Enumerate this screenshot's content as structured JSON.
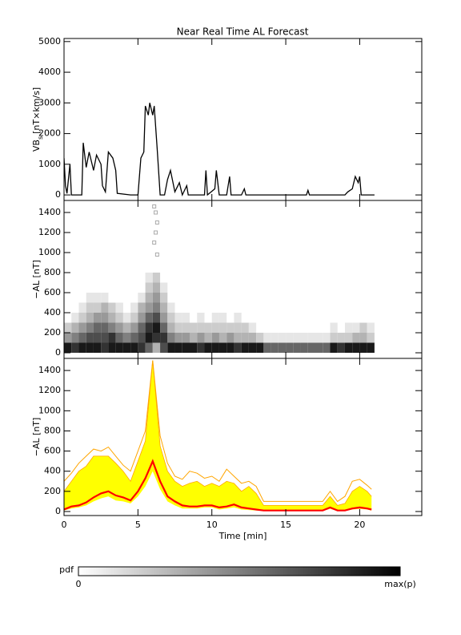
{
  "chart_data": [
    {
      "type": "line",
      "title": "Near Real Time AL Forecast",
      "ylabel": "VB",
      "ylabel_sub": "s",
      "ylabel_unit": "[nT×km/s]",
      "color": "#000000",
      "xlim": [
        0,
        24.2
      ],
      "xticks": [
        0,
        5,
        10,
        15,
        20
      ],
      "ylim": [
        -180,
        5100
      ],
      "yticks": [
        0,
        1000,
        2000,
        3000,
        4000,
        5000
      ],
      "x": [
        0,
        0.1,
        0.2,
        0.4,
        0.5,
        1.2,
        1.3,
        1.5,
        1.7,
        2,
        2.2,
        2.5,
        2.6,
        2.8,
        3.0,
        3.3,
        3.5,
        3.6,
        4.5,
        5,
        5.2,
        5.4,
        5.5,
        5.7,
        5.8,
        6.0,
        6.1,
        6.3,
        6.5,
        6.8,
        7.0,
        7.2,
        7.5,
        7.8,
        8,
        8.3,
        8.4,
        9,
        9.5,
        9.6,
        9.7,
        10.2,
        10.3,
        10.5,
        11,
        11.2,
        11.3,
        12,
        12.2,
        12.3,
        16.4,
        16.5,
        16.6,
        19,
        19.2,
        19.5,
        19.7,
        19.9,
        20,
        20.1,
        21
      ],
      "values": [
        1200,
        300,
        50,
        1000,
        0,
        0,
        1700,
        900,
        1400,
        800,
        1300,
        1000,
        300,
        100,
        1400,
        1200,
        800,
        50,
        0,
        0,
        1200,
        1400,
        2900,
        2600,
        3000,
        2600,
        2900,
        1500,
        0,
        0,
        500,
        800,
        100,
        400,
        0,
        300,
        0,
        0,
        0,
        800,
        0,
        200,
        800,
        0,
        0,
        600,
        0,
        0,
        200,
        0,
        0,
        150,
        0,
        0,
        100,
        200,
        600,
        400,
        600,
        0,
        0
      ]
    },
    {
      "type": "heatmap",
      "ylabel": "−AL [nT]",
      "xlim": [
        0,
        24.2
      ],
      "xticks": [
        0,
        5,
        10,
        15,
        20
      ],
      "ylim": [
        -56,
        1520
      ],
      "yticks": [
        0,
        200,
        400,
        600,
        800,
        1000,
        1200,
        1400
      ],
      "x_bins": [
        0,
        0.5,
        1,
        1.5,
        2,
        2.5,
        3,
        3.5,
        4,
        4.5,
        5,
        5.5,
        6,
        6.5,
        7,
        7.5,
        8,
        8.5,
        9,
        9.5,
        10,
        10.5,
        11,
        11.5,
        12,
        12.5,
        13,
        13.5,
        14,
        14.5,
        15,
        15.5,
        16,
        16.5,
        17,
        17.5,
        18,
        18.5,
        19,
        19.5,
        20,
        20.5,
        21
      ],
      "y_step": 100,
      "z": [
        [
          0.9,
          0.4,
          0.2
        ],
        [
          0.8,
          0.5,
          0.3,
          0.1
        ],
        [
          0.9,
          0.6,
          0.4,
          0.2,
          0.1
        ],
        [
          0.9,
          0.7,
          0.5,
          0.3,
          0.2,
          0.1
        ],
        [
          0.9,
          0.7,
          0.6,
          0.4,
          0.2,
          0.1
        ],
        [
          0.8,
          0.7,
          0.6,
          0.4,
          0.3,
          0.1
        ],
        [
          0.9,
          0.8,
          0.5,
          0.3,
          0.2
        ],
        [
          0.9,
          0.6,
          0.4,
          0.2,
          0.1
        ],
        [
          0.9,
          0.5,
          0.3,
          0.1
        ],
        [
          0.9,
          0.6,
          0.4,
          0.2,
          0.1
        ],
        [
          0.8,
          0.7,
          0.6,
          0.4,
          0.3,
          0.1
        ],
        [
          0.6,
          0.9,
          0.8,
          0.6,
          0.4,
          0.3,
          0.2,
          0.1
        ],
        [
          0.3,
          0.8,
          0.9,
          0.7,
          0.5,
          0.4,
          0.3,
          0.2
        ],
        [
          0.7,
          0.8,
          0.6,
          0.4,
          0.3,
          0.2,
          0.1
        ],
        [
          0.9,
          0.5,
          0.3,
          0.2,
          0.1
        ],
        [
          0.9,
          0.4,
          0.2,
          0.1
        ],
        [
          0.9,
          0.4,
          0.2,
          0.1
        ],
        [
          0.9,
          0.3,
          0.2
        ],
        [
          0.8,
          0.4,
          0.2,
          0.1
        ],
        [
          0.9,
          0.3,
          0.2
        ],
        [
          0.9,
          0.4,
          0.2,
          0.1
        ],
        [
          0.9,
          0.3,
          0.2,
          0.1
        ],
        [
          0.9,
          0.4,
          0.2
        ],
        [
          0.8,
          0.3,
          0.2,
          0.1
        ],
        [
          0.9,
          0.3,
          0.2
        ],
        [
          0.9,
          0.3,
          0.1
        ],
        [
          0.9,
          0.2
        ],
        [
          0.6,
          0.1
        ],
        [
          0.6,
          0.1
        ],
        [
          0.6,
          0.1
        ],
        [
          0.6,
          0.1
        ],
        [
          0.6,
          0.1
        ],
        [
          0.6,
          0.1
        ],
        [
          0.6,
          0.1
        ],
        [
          0.6,
          0.1
        ],
        [
          0.6,
          0.1
        ],
        [
          0.9,
          0.2,
          0.1
        ],
        [
          0.8,
          0.2
        ],
        [
          0.9,
          0.2,
          0.1
        ],
        [
          0.9,
          0.3,
          0.1
        ],
        [
          0.9,
          0.3,
          0.2
        ],
        [
          0.9,
          0.2,
          0.1
        ]
      ],
      "outliers": {
        "x": [
          6.1,
          6.2,
          6.3,
          6.2,
          6.1,
          6.3
        ],
        "y": [
          1460,
          1400,
          1300,
          1200,
          1100,
          980
        ]
      },
      "colorbar": {
        "label": "pdf",
        "min_label": "0",
        "max_label": "max(p)"
      }
    },
    {
      "type": "band",
      "ylabel": "−AL [nT]",
      "xlabel": "Time [min]",
      "xlim": [
        0,
        24.2
      ],
      "xticks": [
        0,
        5,
        10,
        15,
        20
      ],
      "ylim": [
        -40,
        1520
      ],
      "yticks": [
        0,
        200,
        400,
        600,
        800,
        1000,
        1200,
        1400
      ],
      "x": [
        0,
        0.5,
        1,
        1.5,
        2,
        2.5,
        3,
        3.5,
        4,
        4.5,
        5,
        5.5,
        6,
        6.5,
        7,
        7.5,
        8,
        8.5,
        9,
        9.5,
        10,
        10.5,
        11,
        11.5,
        12,
        12.5,
        13,
        13.5,
        14,
        14.5,
        15,
        15.5,
        16,
        16.5,
        17,
        17.5,
        18,
        18.5,
        19,
        19.5,
        20,
        20.5,
        20.8
      ],
      "max": {
        "color": "#ffa500",
        "values": [
          300,
          380,
          480,
          550,
          620,
          600,
          640,
          550,
          460,
          400,
          600,
          800,
          1500,
          750,
          480,
          350,
          320,
          400,
          380,
          330,
          350,
          300,
          420,
          350,
          280,
          300,
          250,
          100,
          100,
          100,
          100,
          100,
          100,
          100,
          100,
          100,
          200,
          100,
          150,
          300,
          320,
          260,
          220
        ]
      },
      "band": {
        "color": "#ffff00",
        "upper": [
          200,
          300,
          400,
          450,
          550,
          550,
          550,
          480,
          400,
          300,
          500,
          700,
          1500,
          650,
          400,
          300,
          250,
          280,
          300,
          250,
          280,
          250,
          300,
          280,
          200,
          250,
          180,
          60,
          60,
          60,
          60,
          60,
          60,
          60,
          60,
          60,
          150,
          60,
          80,
          200,
          250,
          200,
          150
        ],
        "lower": [
          10,
          30,
          40,
          60,
          100,
          130,
          150,
          110,
          100,
          80,
          150,
          250,
          400,
          220,
          100,
          60,
          30,
          30,
          30,
          40,
          40,
          20,
          30,
          40,
          20,
          15,
          10,
          5,
          5,
          5,
          5,
          5,
          5,
          5,
          5,
          5,
          25,
          5,
          5,
          20,
          25,
          20,
          10
        ]
      },
      "median": {
        "color": "#ff0000",
        "values": [
          20,
          50,
          60,
          90,
          140,
          180,
          200,
          160,
          140,
          110,
          200,
          330,
          500,
          300,
          150,
          100,
          60,
          50,
          50,
          60,
          60,
          40,
          50,
          70,
          40,
          30,
          20,
          10,
          10,
          10,
          10,
          10,
          10,
          10,
          10,
          10,
          40,
          10,
          10,
          30,
          40,
          30,
          20
        ]
      }
    }
  ]
}
